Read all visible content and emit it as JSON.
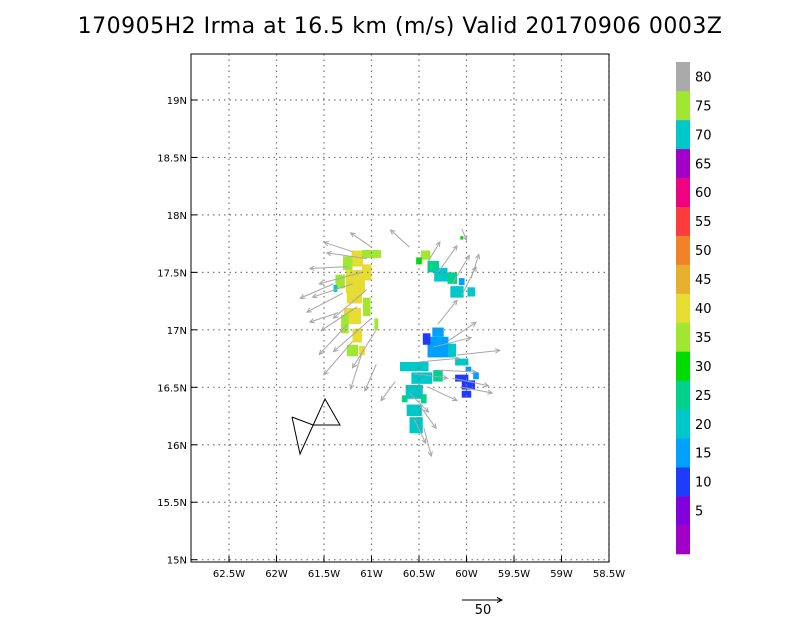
{
  "chart_data": {
    "type": "heatmap",
    "title": "170905H2 Irma at 16.5 km (m/s) Valid 20170906  0003Z",
    "xlim": [
      -62.9,
      -58.5
    ],
    "ylim": [
      14.98,
      19.4
    ],
    "grid": true,
    "x_ticks": [
      {
        "value": -62.5,
        "label": "62.5W"
      },
      {
        "value": -62.0,
        "label": "62W"
      },
      {
        "value": -61.5,
        "label": "61.5W"
      },
      {
        "value": -61.0,
        "label": "61W"
      },
      {
        "value": -60.5,
        "label": "60.5W"
      },
      {
        "value": -60.0,
        "label": "60W"
      },
      {
        "value": -59.5,
        "label": "59.5W"
      },
      {
        "value": -59.0,
        "label": "59W"
      },
      {
        "value": -58.5,
        "label": "58.5W"
      }
    ],
    "y_ticks": [
      {
        "value": 15.0,
        "label": "15N"
      },
      {
        "value": 15.5,
        "label": "15.5N"
      },
      {
        "value": 16.0,
        "label": "16N"
      },
      {
        "value": 16.5,
        "label": "16.5N"
      },
      {
        "value": 17.0,
        "label": "17N"
      },
      {
        "value": 17.5,
        "label": "17.5N"
      },
      {
        "value": 18.0,
        "label": "18N"
      },
      {
        "value": 18.5,
        "label": "18.5N"
      },
      {
        "value": 19.0,
        "label": "19N"
      }
    ],
    "colorbar": {
      "levels": [
        {
          "label": "",
          "color": "#a000c8"
        },
        {
          "label": "5",
          "color": "#8200dc"
        },
        {
          "label": "10",
          "color": "#1e3cff"
        },
        {
          "label": "15",
          "color": "#00a0ff"
        },
        {
          "label": "20",
          "color": "#00c8c8"
        },
        {
          "label": "25",
          "color": "#00d28c"
        },
        {
          "label": "30",
          "color": "#00dc00"
        },
        {
          "label": "35",
          "color": "#a0e632"
        },
        {
          "label": "40",
          "color": "#e6dc32"
        },
        {
          "label": "45",
          "color": "#e6af2d"
        },
        {
          "label": "50",
          "color": "#f08228"
        },
        {
          "label": "55",
          "color": "#fa3c3c"
        },
        {
          "label": "60",
          "color": "#f00082"
        },
        {
          "label": "65",
          "color": "#a000c8"
        },
        {
          "label": "70",
          "color": "#00c8c8"
        },
        {
          "label": "75",
          "color": "#a0e632"
        },
        {
          "label": "80",
          "color": "#aaaaaa"
        }
      ]
    },
    "cells": [
      {
        "lon": -61.15,
        "lat": 17.62,
        "dlon": 0.12,
        "dlat": 0.14,
        "value": 40
      },
      {
        "lon": -61.0,
        "lat": 17.66,
        "dlon": 0.2,
        "dlat": 0.07,
        "value": 35
      },
      {
        "lon": -61.25,
        "lat": 17.58,
        "dlon": 0.1,
        "dlat": 0.12,
        "value": 35
      },
      {
        "lon": -61.17,
        "lat": 17.42,
        "dlon": 0.2,
        "dlat": 0.2,
        "value": 40
      },
      {
        "lon": -61.33,
        "lat": 17.42,
        "dlon": 0.1,
        "dlat": 0.12,
        "value": 35
      },
      {
        "lon": -61.38,
        "lat": 17.36,
        "dlon": 0.04,
        "dlat": 0.06,
        "value": 20
      },
      {
        "lon": -61.18,
        "lat": 17.28,
        "dlon": 0.16,
        "dlat": 0.1,
        "value": 40
      },
      {
        "lon": -61.05,
        "lat": 17.5,
        "dlon": 0.1,
        "dlat": 0.14,
        "value": 40
      },
      {
        "lon": -61.2,
        "lat": 17.12,
        "dlon": 0.18,
        "dlat": 0.14,
        "value": 40
      },
      {
        "lon": -61.05,
        "lat": 17.2,
        "dlon": 0.08,
        "dlat": 0.16,
        "value": 35
      },
      {
        "lon": -61.28,
        "lat": 17.05,
        "dlon": 0.08,
        "dlat": 0.16,
        "value": 35
      },
      {
        "lon": -61.15,
        "lat": 16.95,
        "dlon": 0.1,
        "dlat": 0.12,
        "value": 40
      },
      {
        "lon": -61.2,
        "lat": 16.82,
        "dlon": 0.12,
        "dlat": 0.1,
        "value": 35
      },
      {
        "lon": -61.1,
        "lat": 16.82,
        "dlon": 0.06,
        "dlat": 0.08,
        "value": 40
      },
      {
        "lon": -60.95,
        "lat": 17.05,
        "dlon": 0.04,
        "dlat": 0.1,
        "value": 35
      },
      {
        "lon": -60.43,
        "lat": 17.65,
        "dlon": 0.1,
        "dlat": 0.08,
        "value": 35
      },
      {
        "lon": -60.35,
        "lat": 17.55,
        "dlon": 0.12,
        "dlat": 0.1,
        "value": 25
      },
      {
        "lon": -60.27,
        "lat": 17.48,
        "dlon": 0.14,
        "dlat": 0.12,
        "value": 20
      },
      {
        "lon": -60.15,
        "lat": 17.45,
        "dlon": 0.1,
        "dlat": 0.1,
        "value": 25
      },
      {
        "lon": -60.1,
        "lat": 17.33,
        "dlon": 0.14,
        "dlat": 0.1,
        "value": 20
      },
      {
        "lon": -60.05,
        "lat": 17.42,
        "dlon": 0.06,
        "dlat": 0.06,
        "value": 15
      },
      {
        "lon": -59.95,
        "lat": 17.33,
        "dlon": 0.08,
        "dlat": 0.08,
        "value": 20
      },
      {
        "lon": -60.5,
        "lat": 17.6,
        "dlon": 0.06,
        "dlat": 0.06,
        "value": 30
      },
      {
        "lon": -60.05,
        "lat": 17.8,
        "dlon": 0.03,
        "dlat": 0.03,
        "value": 30
      },
      {
        "lon": -60.3,
        "lat": 16.98,
        "dlon": 0.12,
        "dlat": 0.08,
        "value": 15
      },
      {
        "lon": -60.3,
        "lat": 16.85,
        "dlon": 0.22,
        "dlat": 0.18,
        "value": 15
      },
      {
        "lon": -60.42,
        "lat": 16.92,
        "dlon": 0.08,
        "dlat": 0.1,
        "value": 10
      },
      {
        "lon": -60.15,
        "lat": 16.82,
        "dlon": 0.08,
        "dlat": 0.12,
        "value": 20
      },
      {
        "lon": -60.05,
        "lat": 16.72,
        "dlon": 0.14,
        "dlat": 0.06,
        "value": 20
      },
      {
        "lon": -60.55,
        "lat": 16.68,
        "dlon": 0.3,
        "dlat": 0.08,
        "value": 20
      },
      {
        "lon": -60.47,
        "lat": 16.58,
        "dlon": 0.22,
        "dlat": 0.1,
        "value": 20
      },
      {
        "lon": -60.3,
        "lat": 16.6,
        "dlon": 0.1,
        "dlat": 0.1,
        "value": 25
      },
      {
        "lon": -60.55,
        "lat": 16.46,
        "dlon": 0.18,
        "dlat": 0.12,
        "value": 20
      },
      {
        "lon": -60.45,
        "lat": 16.4,
        "dlon": 0.06,
        "dlat": 0.08,
        "value": 25
      },
      {
        "lon": -60.55,
        "lat": 16.3,
        "dlon": 0.16,
        "dlat": 0.1,
        "value": 20
      },
      {
        "lon": -60.53,
        "lat": 16.17,
        "dlon": 0.14,
        "dlat": 0.14,
        "value": 20
      },
      {
        "lon": -60.65,
        "lat": 16.4,
        "dlon": 0.06,
        "dlat": 0.06,
        "value": 25
      },
      {
        "lon": -60.05,
        "lat": 16.58,
        "dlon": 0.14,
        "dlat": 0.06,
        "value": 10
      },
      {
        "lon": -59.98,
        "lat": 16.52,
        "dlon": 0.14,
        "dlat": 0.08,
        "value": 10
      },
      {
        "lon": -59.9,
        "lat": 16.6,
        "dlon": 0.06,
        "dlat": 0.06,
        "value": 15
      },
      {
        "lon": -60.0,
        "lat": 16.44,
        "dlon": 0.1,
        "dlat": 0.06,
        "value": 10
      },
      {
        "lon": -59.98,
        "lat": 16.66,
        "dlon": 0.06,
        "dlat": 0.04,
        "value": 15
      }
    ],
    "vectors": [
      {
        "lon": -61.2,
        "lat": 17.68,
        "u": -30,
        "v": 10
      },
      {
        "lon": -61.05,
        "lat": 17.62,
        "u": -42,
        "v": 6
      },
      {
        "lon": -61.25,
        "lat": 17.55,
        "u": -40,
        "v": -2
      },
      {
        "lon": -61.1,
        "lat": 17.5,
        "u": -45,
        "v": -12
      },
      {
        "lon": -61.2,
        "lat": 17.4,
        "u": -42,
        "v": -14
      },
      {
        "lon": -61.3,
        "lat": 17.32,
        "u": -38,
        "v": -20
      },
      {
        "lon": -61.05,
        "lat": 17.35,
        "u": -35,
        "v": -30
      },
      {
        "lon": -61.15,
        "lat": 17.2,
        "u": -38,
        "v": -25
      },
      {
        "lon": -61.25,
        "lat": 17.05,
        "u": -30,
        "v": -32
      },
      {
        "lon": -61.0,
        "lat": 17.1,
        "u": -40,
        "v": -35
      },
      {
        "lon": -61.2,
        "lat": 16.9,
        "u": -30,
        "v": -35
      },
      {
        "lon": -61.1,
        "lat": 16.8,
        "u": -12,
        "v": -38
      },
      {
        "lon": -60.95,
        "lat": 17.0,
        "u": -25,
        "v": -40
      },
      {
        "lon": -61.35,
        "lat": 17.15,
        "u": -30,
        "v": -10
      },
      {
        "lon": -61.4,
        "lat": 17.4,
        "u": -35,
        "v": -15
      },
      {
        "lon": -61.0,
        "lat": 17.72,
        "u": -22,
        "v": 15
      },
      {
        "lon": -60.6,
        "lat": 17.72,
        "u": -20,
        "v": 18
      },
      {
        "lon": -60.4,
        "lat": 17.6,
        "u": 12,
        "v": 20
      },
      {
        "lon": -60.3,
        "lat": 17.5,
        "u": 20,
        "v": 28
      },
      {
        "lon": -60.15,
        "lat": 17.4,
        "u": 18,
        "v": 30
      },
      {
        "lon": -60.05,
        "lat": 17.3,
        "u": 15,
        "v": 30
      },
      {
        "lon": -59.95,
        "lat": 17.45,
        "u": 8,
        "v": 25
      },
      {
        "lon": -60.05,
        "lat": 17.88,
        "u": 5,
        "v": -12
      },
      {
        "lon": -60.3,
        "lat": 17.05,
        "u": 20,
        "v": 25
      },
      {
        "lon": -60.2,
        "lat": 16.9,
        "u": 30,
        "v": 20
      },
      {
        "lon": -60.35,
        "lat": 16.85,
        "u": 40,
        "v": 10
      },
      {
        "lon": -60.1,
        "lat": 16.78,
        "u": 45,
        "v": 5
      },
      {
        "lon": -60.5,
        "lat": 16.72,
        "u": 42,
        "v": 4
      },
      {
        "lon": -60.3,
        "lat": 16.65,
        "u": 40,
        "v": -2
      },
      {
        "lon": -60.55,
        "lat": 16.62,
        "u": 35,
        "v": -5
      },
      {
        "lon": -60.15,
        "lat": 16.58,
        "u": 38,
        "v": -8
      },
      {
        "lon": -60.4,
        "lat": 16.5,
        "u": 30,
        "v": -14
      },
      {
        "lon": -60.05,
        "lat": 16.5,
        "u": 32,
        "v": -6
      },
      {
        "lon": -60.6,
        "lat": 16.45,
        "u": 20,
        "v": -20
      },
      {
        "lon": -60.5,
        "lat": 16.35,
        "u": 18,
        "v": -25
      },
      {
        "lon": -60.55,
        "lat": 16.22,
        "u": 12,
        "v": -25
      },
      {
        "lon": -60.45,
        "lat": 16.15,
        "u": 8,
        "v": -30
      },
      {
        "lon": -60.75,
        "lat": 16.55,
        "u": -15,
        "v": -20
      },
      {
        "lon": -60.95,
        "lat": 16.7,
        "u": -12,
        "v": -28
      }
    ],
    "vector_scale": {
      "label": "50",
      "value": 50
    }
  }
}
